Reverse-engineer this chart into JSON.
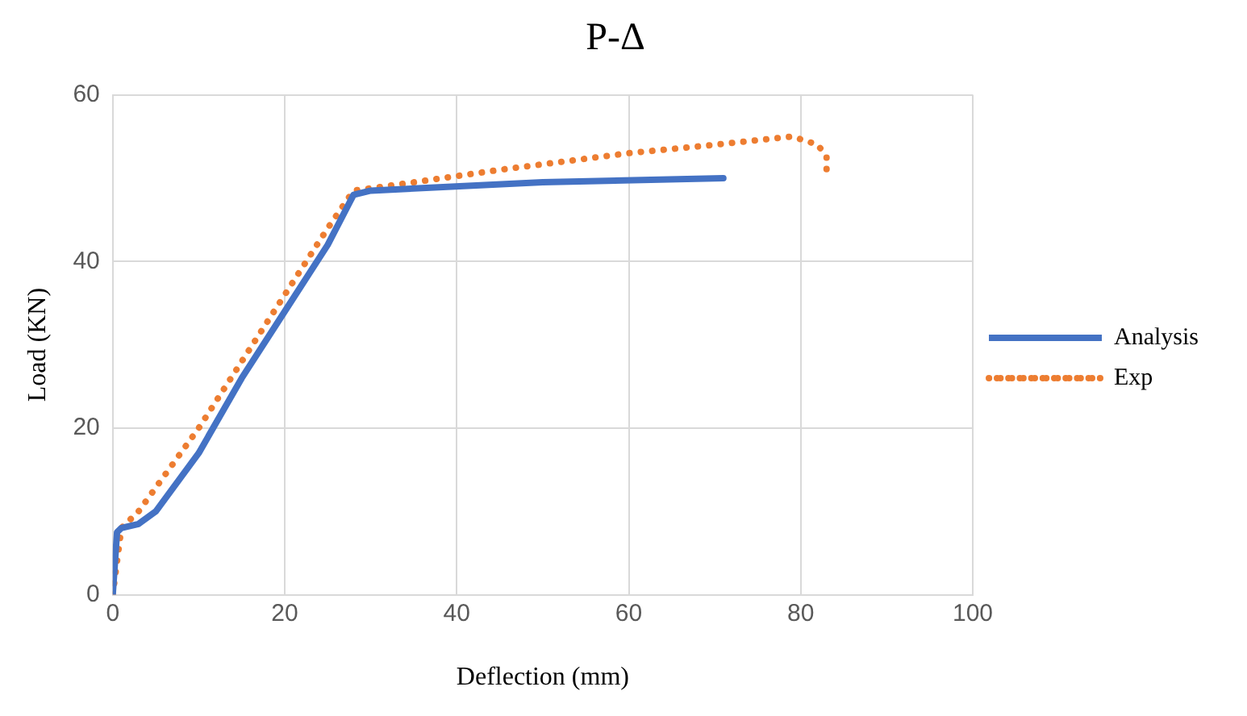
{
  "chart_data": {
    "type": "line",
    "title": "P-Δ",
    "xlabel": "Deflection (mm)",
    "ylabel": "Load (KN)",
    "xlim": [
      0,
      100
    ],
    "xticks": [
      0,
      20,
      40,
      60,
      80,
      100
    ],
    "ylim": [
      0,
      60
    ],
    "yticks": [
      0,
      20,
      40,
      60
    ],
    "grid": true,
    "legend": "right",
    "marker": "none",
    "series": [
      {
        "name": "Analysis",
        "color": "#4472c4",
        "line_style": "solid",
        "x": [
          0,
          0.5,
          1,
          3,
          5,
          10,
          15,
          20,
          25,
          28,
          30,
          50,
          71
        ],
        "values": [
          0,
          7.5,
          8,
          8.5,
          10,
          17,
          26,
          34,
          42,
          48,
          48.5,
          49.5,
          50
        ]
      },
      {
        "name": "Exp",
        "color": "#ed7d31",
        "line_style": "dotted",
        "x": [
          0,
          0.5,
          1,
          3,
          10,
          20,
          25,
          28,
          35,
          45,
          60,
          70,
          79,
          82,
          83,
          83
        ],
        "values": [
          0,
          4,
          8,
          10,
          20,
          36,
          44,
          48.5,
          49.5,
          51,
          53,
          54,
          55,
          54,
          52.5,
          50
        ]
      }
    ]
  }
}
